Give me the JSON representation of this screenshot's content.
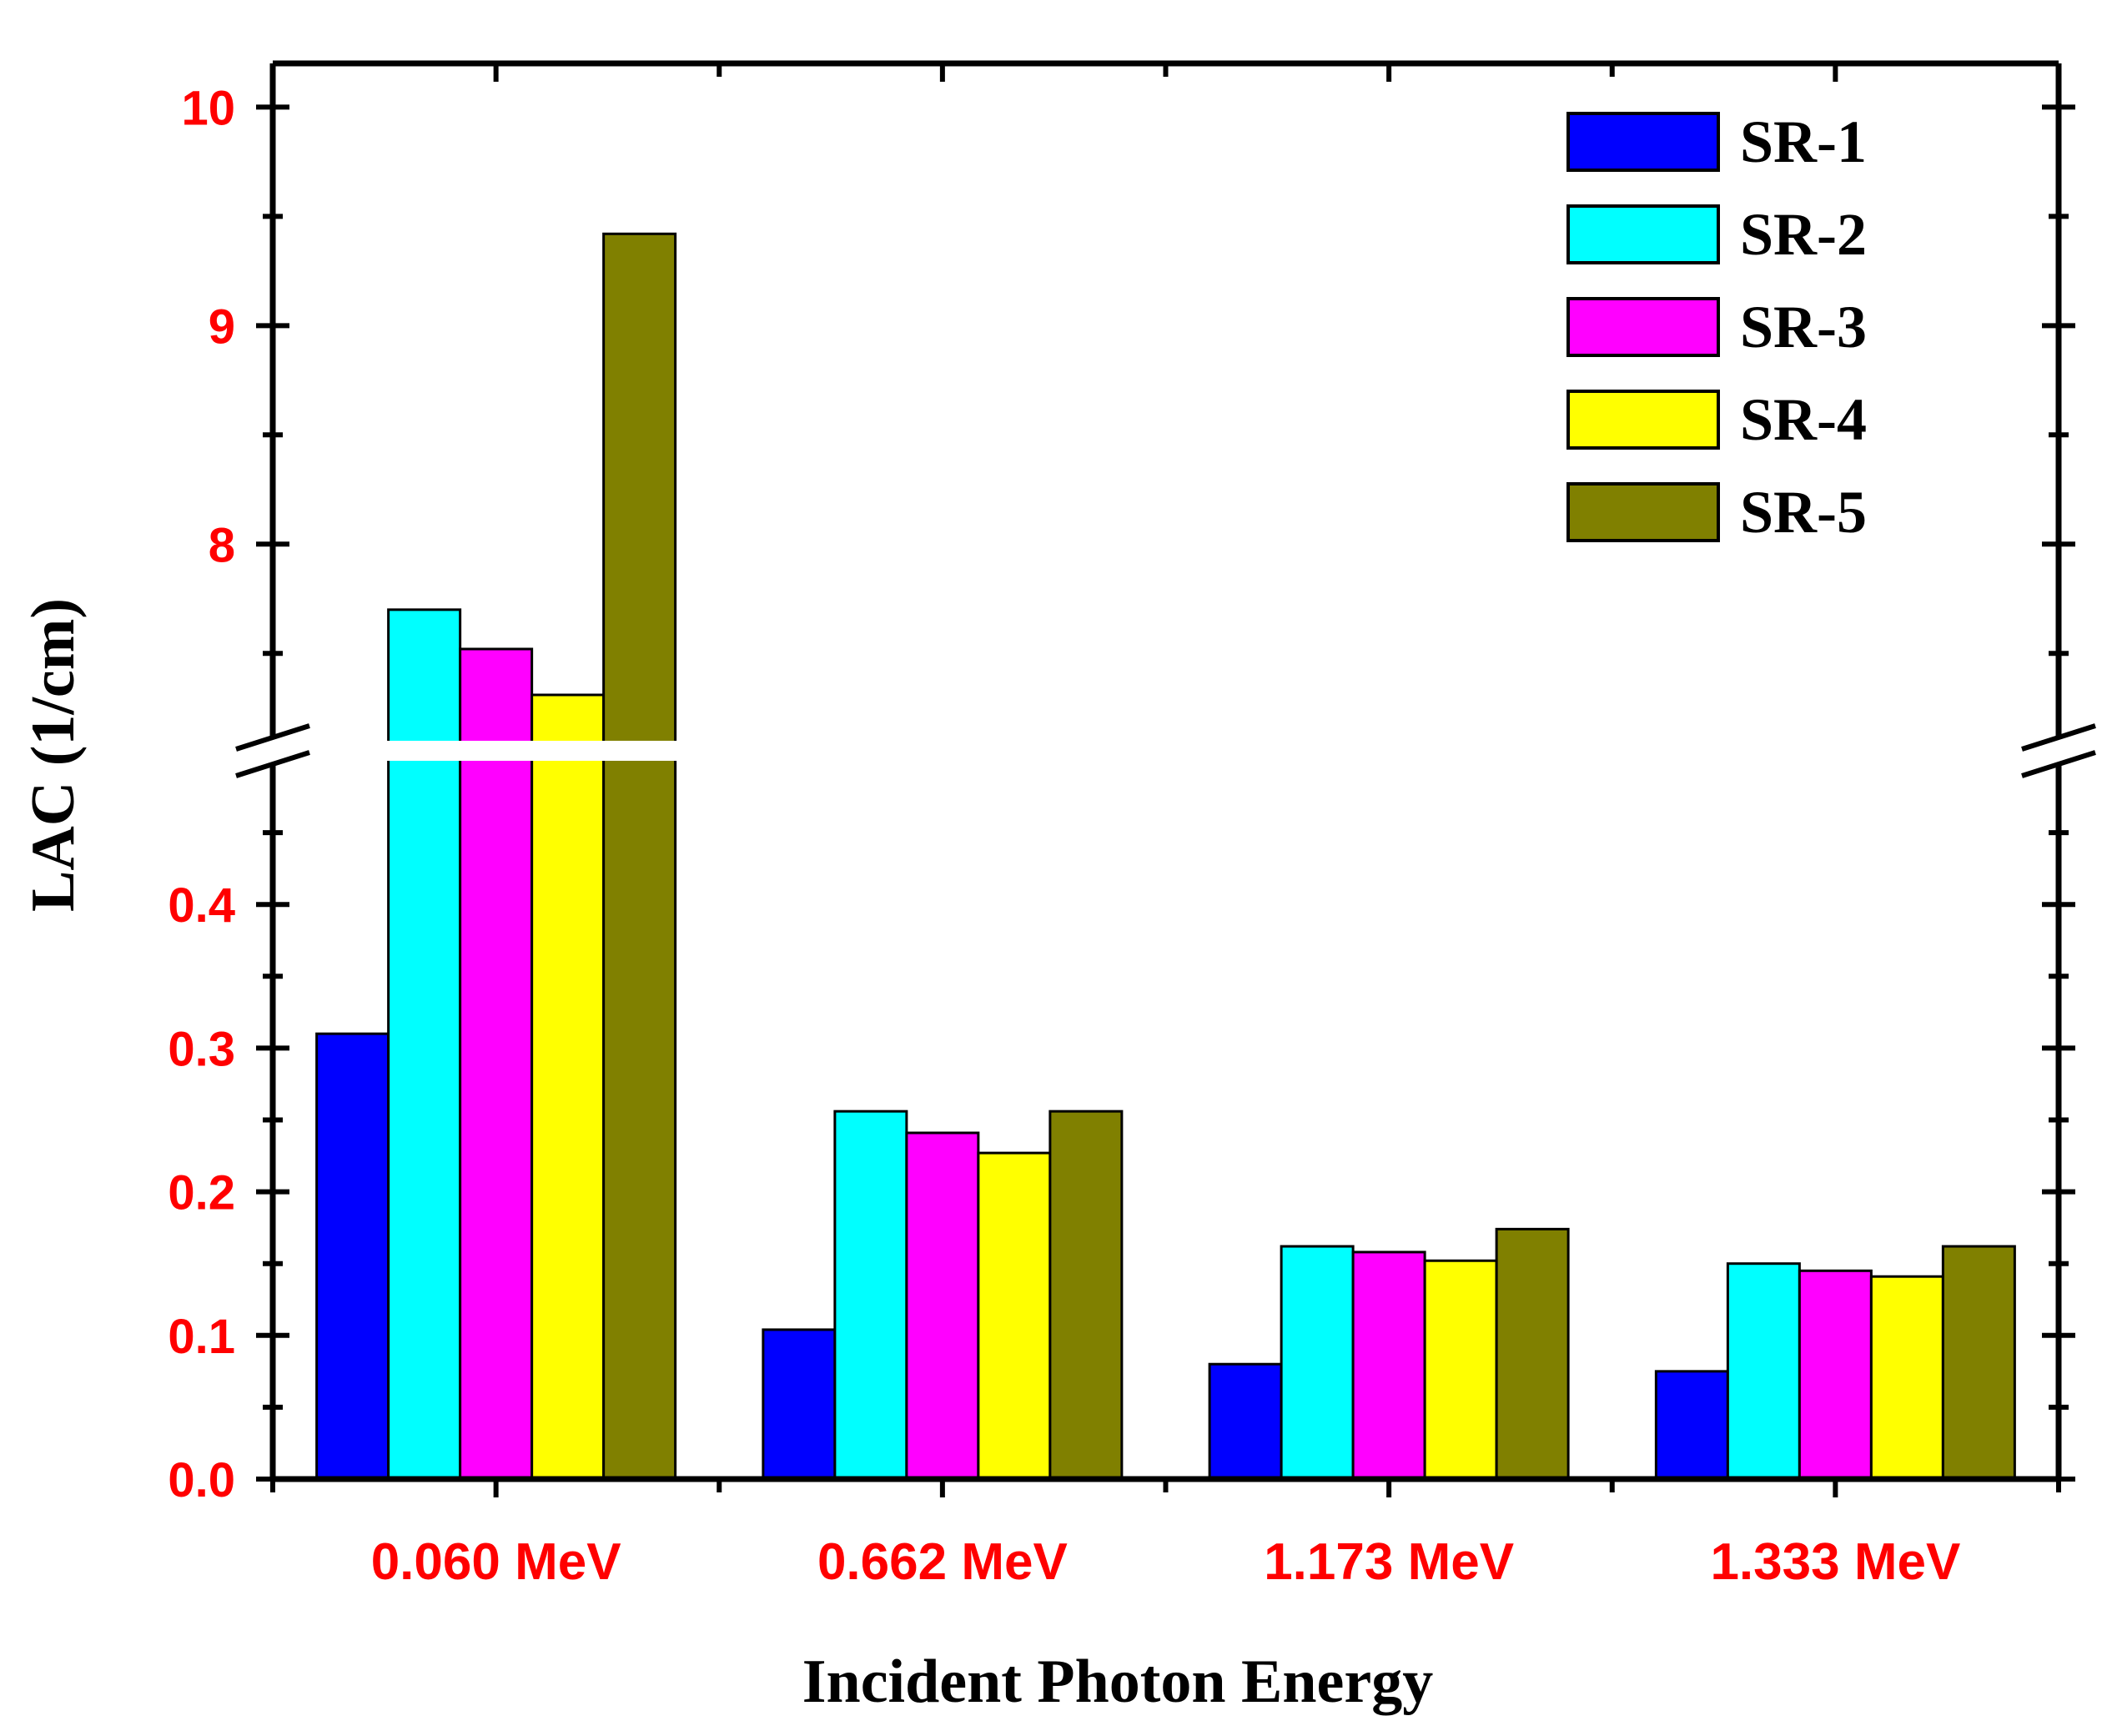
{
  "chart_data": {
    "type": "bar",
    "xlabel": "Incident Photon Energy",
    "ylabel": "LAC (1/cm)",
    "categories": [
      "0.060 MeV",
      "0.662 MeV",
      "1.173 MeV",
      "1.333 MeV"
    ],
    "series": [
      {
        "name": "SR-1",
        "color": "#0000FF",
        "values": [
          0.31,
          0.104,
          0.08,
          0.075
        ]
      },
      {
        "name": "SR-2",
        "color": "#00FFFF",
        "values": [
          7.7,
          0.256,
          0.162,
          0.15
        ]
      },
      {
        "name": "SR-3",
        "color": "#FF00FF",
        "values": [
          7.52,
          0.241,
          0.158,
          0.145
        ]
      },
      {
        "name": "SR-4",
        "color": "#FFFF00",
        "values": [
          7.31,
          0.227,
          0.152,
          0.141
        ]
      },
      {
        "name": "SR-5",
        "color": "#808000",
        "values": [
          9.42,
          0.256,
          0.174,
          0.162
        ]
      }
    ],
    "y_axis_break": {
      "lower_range": [
        0,
        0.5
      ],
      "upper_range": [
        7.1,
        10.2
      ]
    },
    "y_ticks_lower": [
      "0.0",
      "0.1",
      "0.2",
      "0.3",
      "0.4"
    ],
    "y_ticks_upper": [
      "8",
      "9",
      "10"
    ],
    "legend_position": "top-right",
    "grid": false,
    "tick_label_color": "#FF0000"
  }
}
